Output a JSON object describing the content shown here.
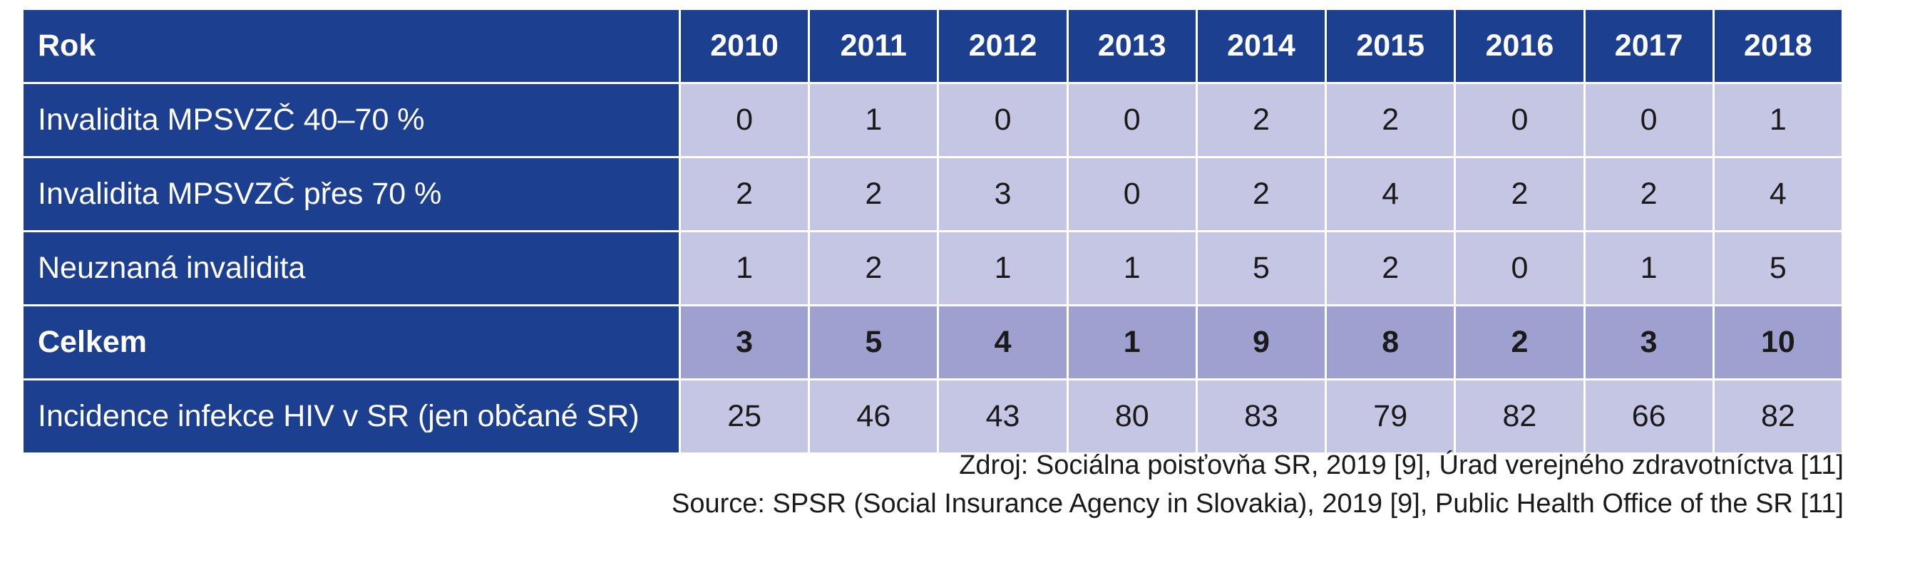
{
  "table": {
    "header": {
      "label": "Rok",
      "years": [
        "2010",
        "2011",
        "2012",
        "2013",
        "2014",
        "2015",
        "2016",
        "2017",
        "2018"
      ]
    },
    "rows": [
      {
        "label": "Invalidita MPSVZČ 40–70 %",
        "values": [
          "0",
          "1",
          "0",
          "0",
          "2",
          "2",
          "0",
          "0",
          "1"
        ]
      },
      {
        "label": "Invalidita MPSVZČ přes 70 %",
        "values": [
          "2",
          "2",
          "3",
          "0",
          "2",
          "4",
          "2",
          "2",
          "4"
        ]
      },
      {
        "label": "Neuznaná invalidita",
        "values": [
          "1",
          "2",
          "1",
          "1",
          "5",
          "2",
          "0",
          "1",
          "5"
        ]
      },
      {
        "label": "Celkem",
        "values": [
          "3",
          "5",
          "4",
          "1",
          "9",
          "8",
          "2",
          "3",
          "10"
        ]
      },
      {
        "label": "Incidence infekce HIV v SR (jen občané SR)",
        "values": [
          "25",
          "46",
          "43",
          "80",
          "83",
          "79",
          "82",
          "66",
          "82"
        ]
      }
    ]
  },
  "source": {
    "line1": "Zdroj: Sociálna poisťovňa SR, 2019 [9], Úrad verejného zdravotníctva [11]",
    "line2": "Source: SPSR (Social Insurance Agency in Slovakia), 2019 [9], Public Health Office of the SR [11]"
  },
  "colors": {
    "header_bg": "#1d3f8f",
    "cell_bg": "#c5c6e3",
    "total_bg": "#9ea1cf"
  }
}
